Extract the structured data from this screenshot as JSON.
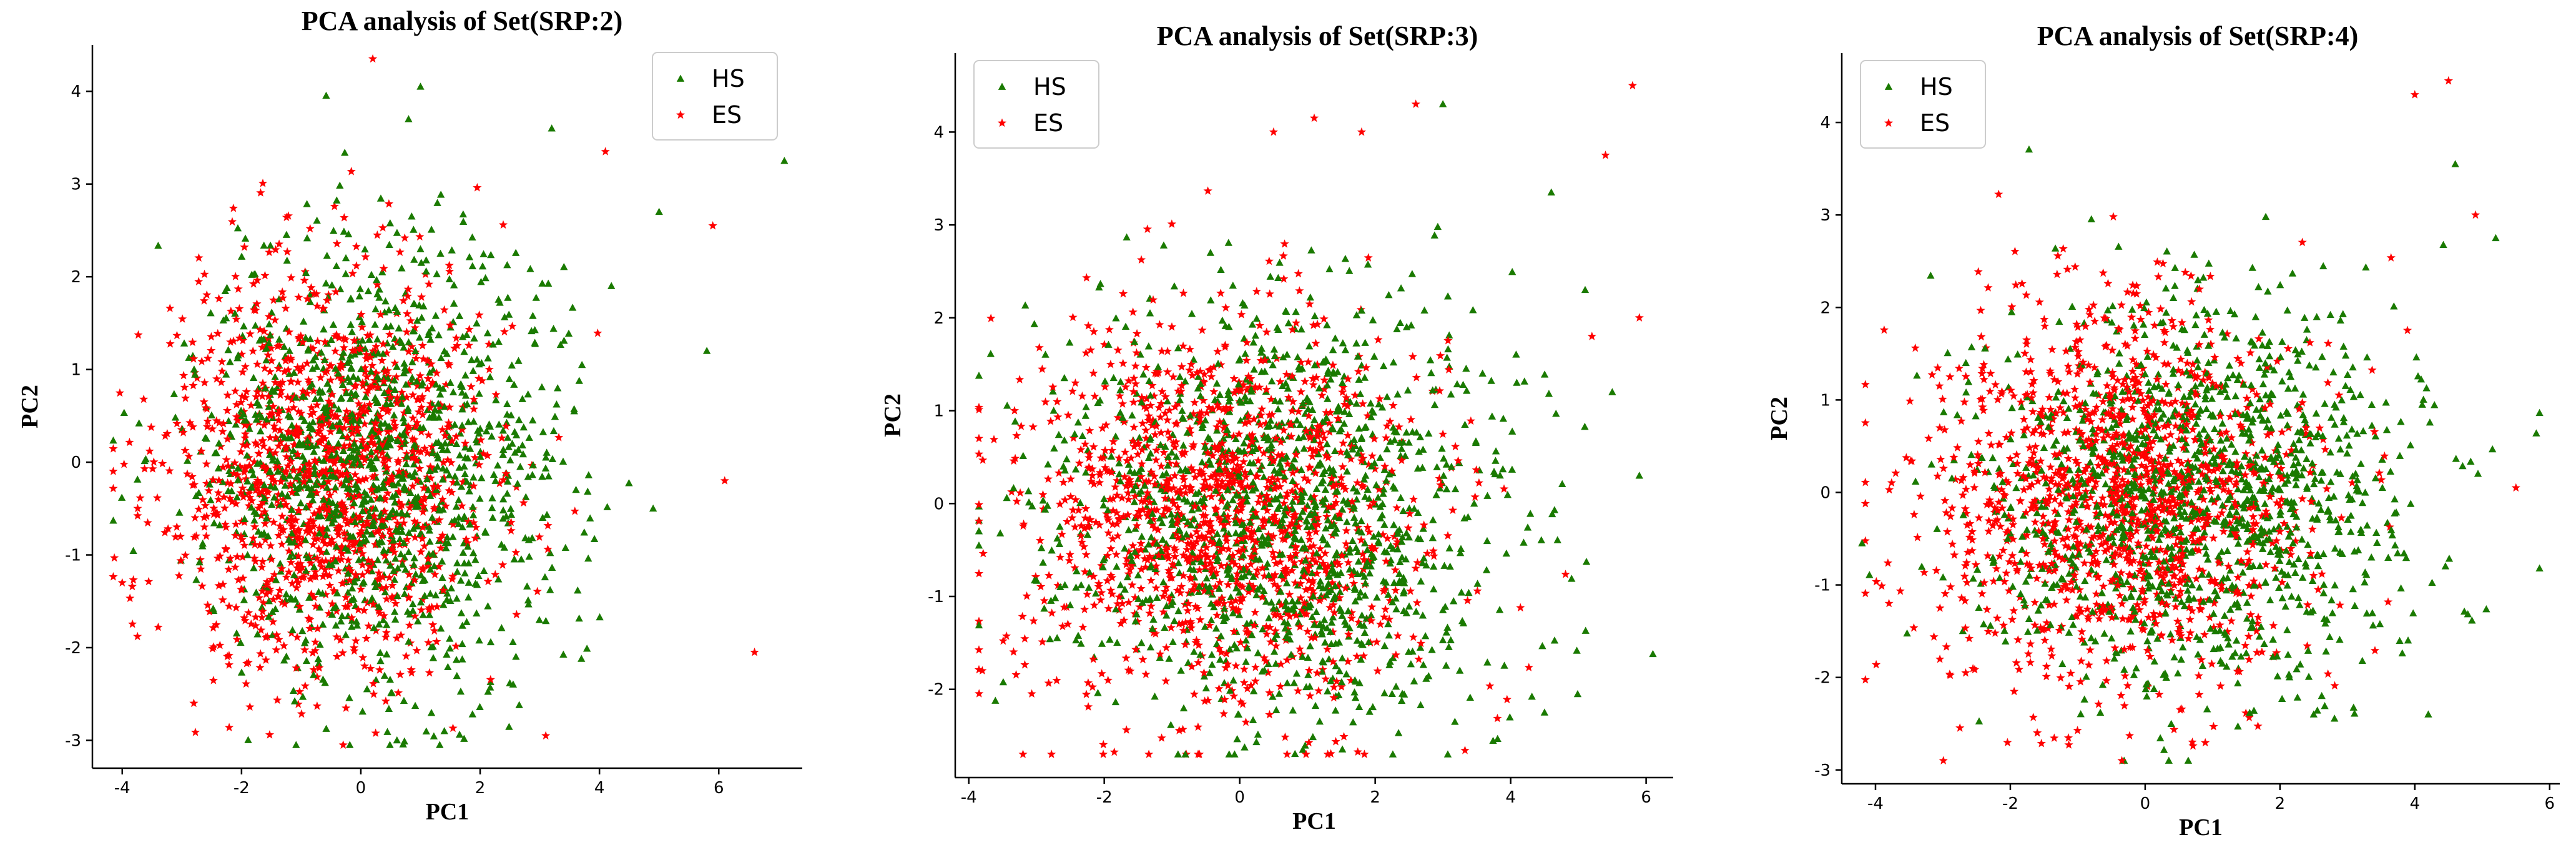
{
  "chart_data": [
    {
      "type": "scatter",
      "title": "PCA analysis of Set(SRP:2)",
      "xlabel": "PC1",
      "ylabel": "PC2",
      "xlim": [
        -4.5,
        7.4
      ],
      "ylim": [
        -3.3,
        4.5
      ],
      "xticks": [
        -4,
        -2,
        0,
        2,
        4,
        6
      ],
      "yticks": [
        -3,
        -2,
        -1,
        0,
        1,
        2,
        3,
        4
      ],
      "legend": {
        "position": "upper right",
        "entries": [
          "HS",
          "ES"
        ]
      },
      "series": [
        {
          "name": "HS",
          "marker": "triangle",
          "color": "#1a7a00",
          "distribution": {
            "count": 1300,
            "center": [
              0.2,
              0.0
            ],
            "spread": [
              1.5,
              1.15
            ]
          },
          "outliers": [
            [
              7.1,
              3.25
            ],
            [
              5.8,
              1.2
            ],
            [
              5.0,
              2.7
            ],
            [
              4.9,
              -0.5
            ],
            [
              4.2,
              1.9
            ],
            [
              1.0,
              4.05
            ],
            [
              0.8,
              3.7
            ],
            [
              3.2,
              3.6
            ],
            [
              1.4,
              -2.9
            ]
          ]
        },
        {
          "name": "ES",
          "marker": "star",
          "color": "#ff0000",
          "distribution": {
            "count": 1300,
            "center": [
              -0.6,
              -0.1
            ],
            "spread": [
              1.35,
              1.1
            ]
          },
          "outliers": [
            [
              6.6,
              -2.05
            ],
            [
              6.1,
              -0.2
            ],
            [
              5.9,
              2.55
            ],
            [
              4.1,
              3.35
            ],
            [
              0.2,
              4.35
            ],
            [
              -4.0,
              -1.3
            ],
            [
              3.1,
              -2.95
            ],
            [
              -2.8,
              -2.6
            ]
          ]
        }
      ]
    },
    {
      "type": "scatter",
      "title": "PCA analysis of Set(SRP:3)",
      "xlabel": "PC1",
      "ylabel": "PC2",
      "xlim": [
        -4.2,
        6.4
      ],
      "ylim": [
        -2.95,
        4.85
      ],
      "xticks": [
        -4,
        -2,
        0,
        2,
        4,
        6
      ],
      "yticks": [
        -2,
        -1,
        0,
        1,
        2,
        3,
        4
      ],
      "legend": {
        "position": "upper left",
        "entries": [
          "HS",
          "ES"
        ]
      },
      "series": [
        {
          "name": "HS",
          "marker": "triangle",
          "color": "#1a7a00",
          "distribution": {
            "count": 1300,
            "center": [
              0.6,
              -0.1
            ],
            "spread": [
              1.6,
              1.1
            ]
          },
          "outliers": [
            [
              5.9,
              0.3
            ],
            [
              5.5,
              1.2
            ],
            [
              3.0,
              4.3
            ],
            [
              4.5,
              -2.25
            ],
            [
              5.1,
              2.3
            ],
            [
              4.6,
              3.35
            ]
          ]
        },
        {
          "name": "ES",
          "marker": "star",
          "color": "#ff0000",
          "distribution": {
            "count": 1300,
            "center": [
              -0.3,
              -0.1
            ],
            "spread": [
              1.45,
              1.05
            ]
          },
          "outliers": [
            [
              5.8,
              4.5
            ],
            [
              5.4,
              3.75
            ],
            [
              5.9,
              2.0
            ],
            [
              2.6,
              4.3
            ],
            [
              1.8,
              4.0
            ],
            [
              1.1,
              4.15
            ],
            [
              0.5,
              4.0
            ],
            [
              -3.8,
              -1.8
            ],
            [
              5.2,
              1.8
            ]
          ]
        }
      ]
    },
    {
      "type": "scatter",
      "title": "PCA analysis of Set(SRP:4)",
      "xlabel": "PC1",
      "ylabel": "PC2",
      "xlim": [
        -4.5,
        6.15
      ],
      "ylim": [
        -3.15,
        4.75
      ],
      "xticks": [
        -4,
        -2,
        0,
        2,
        4,
        6
      ],
      "yticks": [
        -3,
        -2,
        -1,
        0,
        1,
        2,
        3,
        4
      ],
      "legend": {
        "position": "upper left",
        "entries": [
          "HS",
          "ES"
        ]
      },
      "series": [
        {
          "name": "HS",
          "marker": "triangle",
          "color": "#1a7a00",
          "distribution": {
            "count": 1300,
            "center": [
              0.7,
              -0.05
            ],
            "spread": [
              1.6,
              1.05
            ]
          },
          "outliers": [
            [
              -4.2,
              -0.55
            ],
            [
              5.2,
              2.75
            ],
            [
              4.6,
              3.55
            ],
            [
              4.2,
              -2.4
            ],
            [
              3.9,
              -1.6
            ],
            [
              2.5,
              -2.4
            ]
          ]
        },
        {
          "name": "ES",
          "marker": "star",
          "color": "#ff0000",
          "distribution": {
            "count": 1300,
            "center": [
              -0.3,
              -0.05
            ],
            "spread": [
              1.45,
              1.05
            ]
          },
          "outliers": [
            [
              5.5,
              0.05
            ],
            [
              4.5,
              4.45
            ],
            [
              4.0,
              4.3
            ],
            [
              4.9,
              3.0
            ],
            [
              -1.6,
              -2.6
            ],
            [
              0.7,
              -2.7
            ],
            [
              -3.8,
              -1.2
            ]
          ]
        }
      ]
    }
  ]
}
